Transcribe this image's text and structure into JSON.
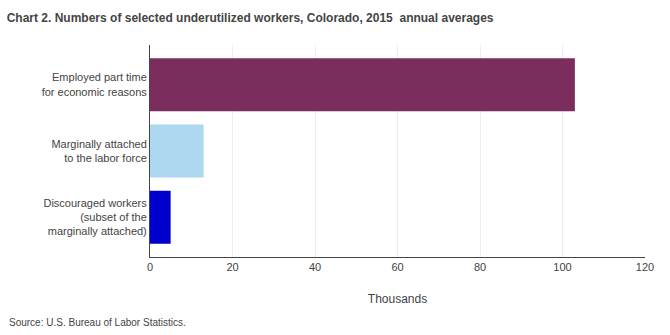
{
  "chart_data": {
    "type": "bar",
    "orientation": "horizontal",
    "title": "Chart 2. Numbers of selected underutilized workers, Colorado, 2015  annual averages",
    "categories": [
      "Discouraged workers\n(subset of the\nmarginally attached)",
      "Marginally attached\nto the labor force",
      "Employed part time\nfor economic reasons"
    ],
    "values": [
      5,
      13,
      103
    ],
    "colors": [
      "#0000cc",
      "#add8f0",
      "#7b2d5e"
    ],
    "xlabel": "Thousands",
    "xlim": [
      0,
      120
    ],
    "xticks": [
      0,
      20,
      40,
      60,
      80,
      100,
      120
    ],
    "grid": true,
    "source": "Source: U.S. Bureau of Labor Statistics."
  }
}
